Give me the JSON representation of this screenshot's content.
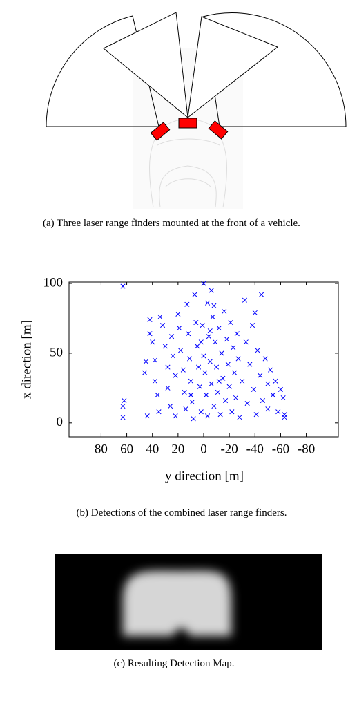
{
  "chart_data": {
    "type": "scatter",
    "xlabel": "y direction [m]",
    "ylabel": "x direction [m]",
    "color": "#0000ff",
    "xlim": [
      105,
      -105
    ],
    "ylim": [
      -10,
      101
    ],
    "xticks": [
      80,
      60,
      40,
      20,
      0,
      -20,
      -40,
      -60,
      -80
    ],
    "yticks": [
      0,
      50,
      100
    ],
    "x": [
      63,
      62,
      63,
      63,
      45,
      46,
      44,
      42,
      42,
      40,
      38,
      38,
      36,
      35,
      34,
      32,
      30,
      28,
      28,
      26,
      25,
      24,
      22,
      22,
      20,
      19,
      18,
      16,
      15,
      14,
      13,
      12,
      11,
      10,
      9,
      8,
      7,
      6,
      5,
      4,
      3,
      2,
      1,
      0,
      -1,
      -2,
      -3,
      -3,
      -4,
      -5,
      -6,
      -6,
      -7,
      -8,
      -9,
      -10,
      -11,
      -12,
      -13,
      -14,
      -15,
      -16,
      -17,
      -18,
      -19,
      -20,
      -21,
      -22,
      -23,
      -24,
      -25,
      -26,
      -27,
      -28,
      -30,
      -32,
      -33,
      -34,
      -36,
      -38,
      -39,
      -40,
      -41,
      -42,
      -44,
      -45,
      -46,
      -48,
      -50,
      -50,
      -52,
      -54,
      -56,
      -58,
      -60,
      -62,
      -63,
      -63,
      0,
      2,
      -5,
      -8,
      10,
      -12
    ],
    "values": [
      12,
      16,
      4,
      98,
      44,
      36,
      5,
      64,
      74,
      58,
      45,
      30,
      20,
      8,
      76,
      70,
      55,
      40,
      25,
      12,
      62,
      48,
      34,
      5,
      78,
      68,
      52,
      38,
      22,
      10,
      85,
      64,
      46,
      30,
      15,
      3,
      92,
      72,
      55,
      40,
      26,
      8,
      70,
      48,
      36,
      20,
      86,
      5,
      62,
      44,
      95,
      28,
      76,
      12,
      58,
      40,
      22,
      68,
      6,
      50,
      32,
      80,
      16,
      60,
      42,
      26,
      72,
      8,
      54,
      36,
      18,
      64,
      46,
      4,
      30,
      88,
      58,
      14,
      42,
      70,
      24,
      79,
      6,
      52,
      34,
      92,
      16,
      46,
      28,
      10,
      38,
      20,
      30,
      8,
      24,
      18,
      4,
      6,
      100,
      58,
      66,
      84,
      20,
      30
    ]
  },
  "captions": {
    "a": {
      "label": "(a)",
      "text": "Three laser range finders mounted at the front of a vehicle."
    },
    "b": {
      "label": "(b)",
      "text": "Detections of the combined laser range finders."
    },
    "c": {
      "label": "(c)",
      "text": "Resulting Detection Map."
    }
  }
}
